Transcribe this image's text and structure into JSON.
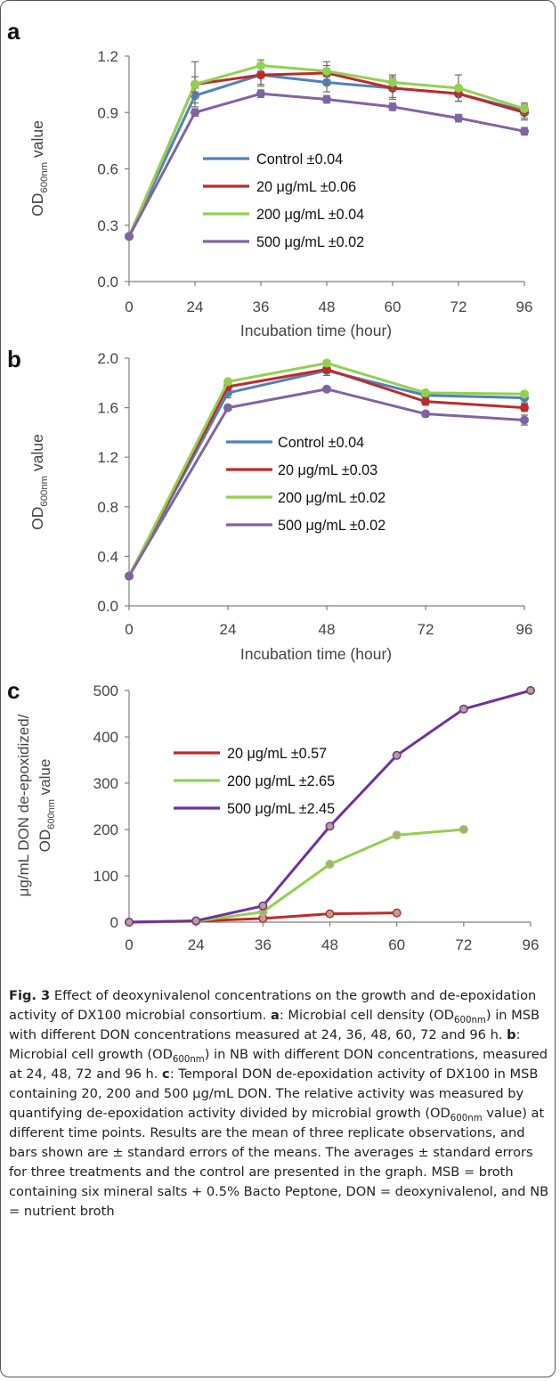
{
  "chart_data": [
    {
      "panel": "a",
      "type": "line",
      "xlabel": "Incubation time (hour)",
      "ylabel": "OD600nm value",
      "x": [
        0,
        24,
        36,
        48,
        60,
        72,
        96
      ],
      "xlim": [
        0,
        96
      ],
      "ylim": [
        0,
        1.2
      ],
      "xticks": [
        "0",
        "24",
        "36",
        "48",
        "60",
        "72",
        "96"
      ],
      "yticks": [
        "0.0",
        "0.3",
        "0.6",
        "0.9",
        "1.2"
      ],
      "legend": "center",
      "series": [
        {
          "name": "Control ±0.04",
          "color": "#4f81bd",
          "values": [
            0.24,
            0.99,
            1.1,
            1.06,
            1.03,
            1.0,
            0.91
          ],
          "err": [
            0,
            0.04,
            0.05,
            0.05,
            0.05,
            0.04,
            0.04
          ]
        },
        {
          "name": "20 μg/mL ±0.06",
          "color": "#c0292b",
          "values": [
            0.24,
            1.05,
            1.1,
            1.11,
            1.03,
            1.0,
            0.9
          ],
          "err": [
            0,
            0.12,
            0.06,
            0.06,
            0.06,
            0.04,
            0.04
          ]
        },
        {
          "name": "200 μg/mL ±0.04",
          "color": "#92d050",
          "values": [
            0.24,
            1.05,
            1.15,
            1.12,
            1.06,
            1.03,
            0.92
          ],
          "err": [
            0,
            0.04,
            0.03,
            0.03,
            0.04,
            0.07,
            0.03
          ]
        },
        {
          "name": "500 μg/mL ±0.02",
          "color": "#8064a2",
          "values": [
            0.24,
            0.9,
            1.0,
            0.97,
            0.93,
            0.87,
            0.8
          ],
          "err": [
            0,
            0.02,
            0.02,
            0.02,
            0.02,
            0.02,
            0.02
          ]
        }
      ]
    },
    {
      "panel": "b",
      "type": "line",
      "xlabel": "Incubation time (hour)",
      "ylabel": "OD600nm value",
      "x": [
        0,
        24,
        48,
        72,
        96
      ],
      "xlim": [
        0,
        96
      ],
      "ylim": [
        0,
        2.0
      ],
      "xticks": [
        "0",
        "24",
        "48",
        "72",
        "96"
      ],
      "yticks": [
        "0.0",
        "0.4",
        "0.8",
        "1.2",
        "1.6",
        "2.0"
      ],
      "legend": "center",
      "series": [
        {
          "name": "Control ±0.04",
          "color": "#4f81bd",
          "values": [
            0.24,
            1.72,
            1.9,
            1.7,
            1.68
          ],
          "err": [
            0,
            0.04,
            0.04,
            0.04,
            0.04
          ]
        },
        {
          "name": "20 μg/mL ±0.03",
          "color": "#c0292b",
          "values": [
            0.24,
            1.77,
            1.91,
            1.65,
            1.6
          ],
          "err": [
            0,
            0.03,
            0.03,
            0.03,
            0.03
          ]
        },
        {
          "name": "200 μg/mL  ±0.02",
          "color": "#92d050",
          "values": [
            0.24,
            1.81,
            1.96,
            1.72,
            1.71
          ],
          "err": [
            0,
            0.02,
            0.02,
            0.02,
            0.02
          ]
        },
        {
          "name": "500 μg/mL  ±0.02",
          "color": "#8064a2",
          "values": [
            0.24,
            1.6,
            1.75,
            1.55,
            1.5
          ],
          "err": [
            0,
            0.02,
            0.02,
            0.02,
            0.04
          ]
        }
      ]
    },
    {
      "panel": "c",
      "type": "line",
      "xlabel": "Incubation time (hour)",
      "ylabel_line1": "μg/mL DON de-epoxidized/",
      "ylabel_line2": "OD600nm value",
      "xlim": [
        0,
        96
      ],
      "ylim": [
        0,
        500
      ],
      "xticks": [
        "0",
        "24",
        "36",
        "48",
        "60",
        "72",
        "96"
      ],
      "xtick_values": [
        0,
        24,
        36,
        48,
        60,
        72,
        96
      ],
      "yticks": [
        "0",
        "100",
        "200",
        "300",
        "400",
        "500"
      ],
      "legend": "upper-left",
      "series": [
        {
          "name": "20 μg/mL  ±0.57",
          "color": "#c0292b",
          "x": [
            0,
            24,
            36,
            48,
            60
          ],
          "values": [
            0,
            2,
            8,
            18,
            20
          ]
        },
        {
          "name": "200 μg/mL ±2.65",
          "color": "#92d050",
          "x": [
            0,
            24,
            36,
            48,
            60,
            72
          ],
          "values": [
            0,
            2,
            22,
            125,
            188,
            200
          ]
        },
        {
          "name": "500 μg/mL ±2.45",
          "color": "#7030a0",
          "x": [
            0,
            24,
            36,
            48,
            60,
            72,
            96
          ],
          "values": [
            0,
            3,
            35,
            207,
            360,
            460,
            500
          ]
        }
      ]
    }
  ],
  "caption": {
    "fig_label": "Fig. 3",
    "title": "Effect of deoxynivalenol concentrations on the growth and de-epoxidation activity of DX100 microbial consortium.",
    "a_label": "a",
    "a_text_1": ": Microbial cell density (OD",
    "a_text_2": ") in MSB with different DON concentrations measured at 24, 36, 48, 60, 72 and 96 h.",
    "b_label": "b",
    "b_text_1": ": Microbial cell growth (OD",
    "b_text_2": ") in NB with different DON concentrations, measured at 24, 48, 72 and 96 h.",
    "c_label": "c",
    "c_text_1": ": Temporal DON de-epoxidation activity of DX100 in MSB containing 20, 200 and 500 μg/mL DON. The relative activity was measured by quantifying de-epoxidation activity divided by microbial growth (OD",
    "c_text_2": " value) at different time points. Results are the mean of three replicate observations, and bars shown are ± standard errors of the means. The averages ± standard errors for three treatments and the control are presented in the graph. MSB = broth containing six mineral salts + 0.5% Bacto Peptone, DON = deoxynivalenol, and NB = nutrient broth",
    "sub": "600nm"
  }
}
